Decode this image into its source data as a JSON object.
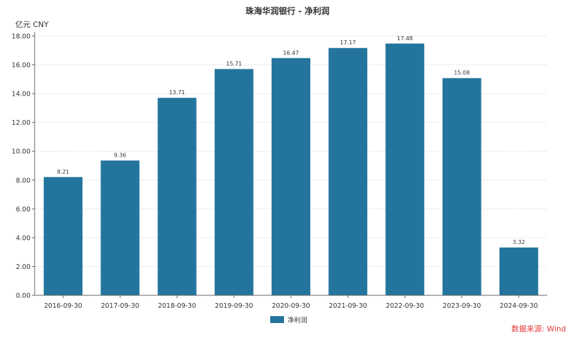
{
  "chart_data": {
    "type": "bar",
    "title": "珠海华润银行 - 净利润",
    "unit_label": "亿元  CNY",
    "categories": [
      "2016-09-30",
      "2017-09-30",
      "2018-09-30",
      "2019-09-30",
      "2020-09-30",
      "2021-09-30",
      "2022-09-30",
      "2023-09-30",
      "2024-09-30"
    ],
    "series": [
      {
        "name": "净利润",
        "color": "#23759d",
        "values": [
          8.21,
          9.36,
          13.71,
          15.71,
          16.47,
          17.17,
          17.48,
          15.08,
          3.32
        ],
        "data_labels": [
          "8.21",
          "9.36",
          "13.71",
          "15.71",
          "16.47",
          "17.17",
          "17.48",
          "15.08",
          "3.32"
        ]
      }
    ],
    "ylim": [
      0,
      18
    ],
    "yticks": [
      "0.00",
      "2.00",
      "4.00",
      "6.00",
      "8.00",
      "10.00",
      "12.00",
      "14.00",
      "16.00",
      "18.00"
    ],
    "grid": true,
    "legend_position": "bottom-center",
    "source_note": "数据来源: Wind"
  }
}
